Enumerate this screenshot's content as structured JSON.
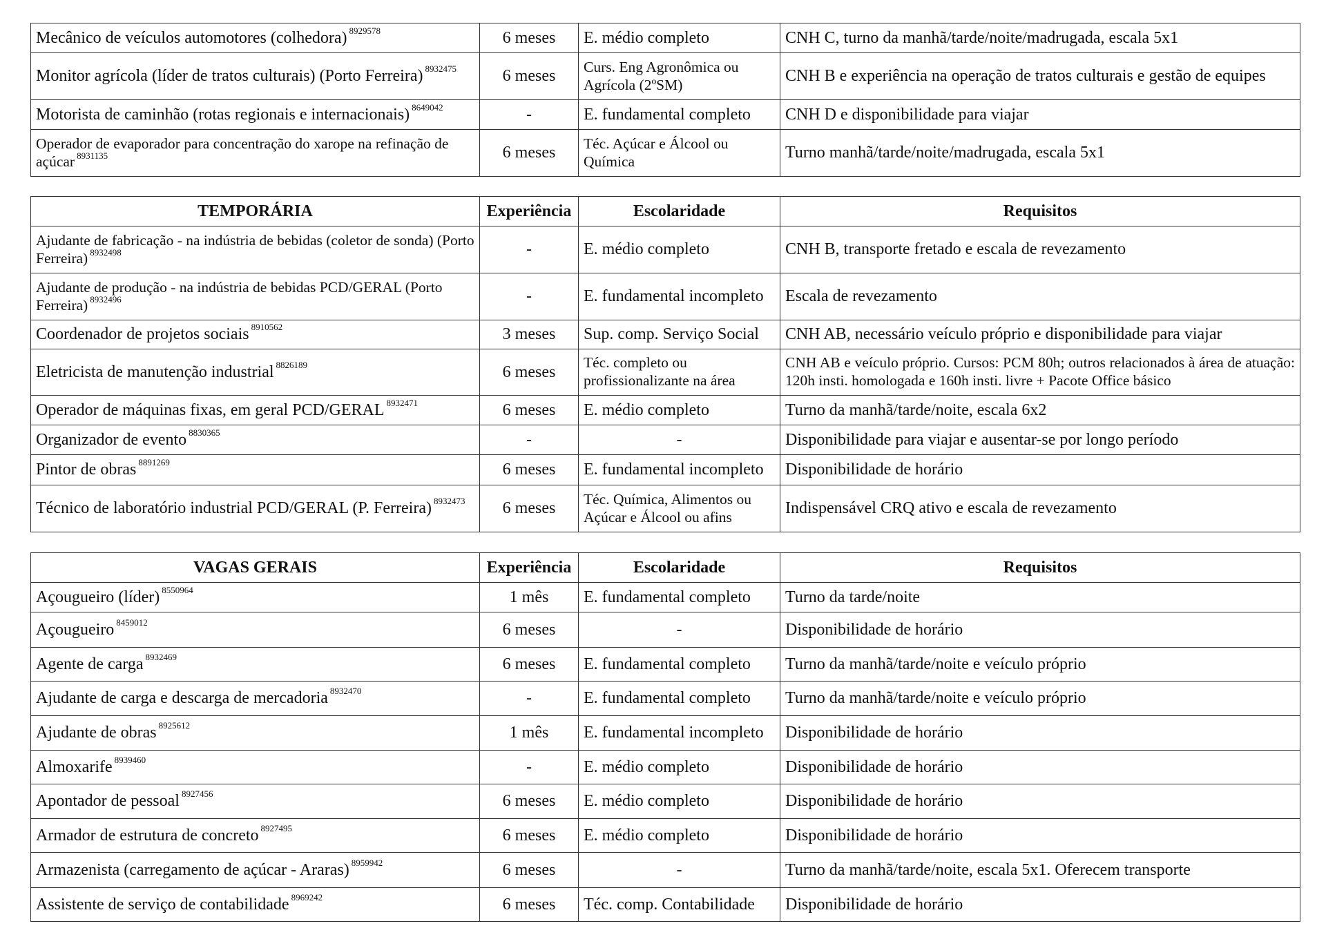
{
  "tables": [
    {
      "headers": null,
      "rows": [
        {
          "cargo": "Mecânico de veículos automotores (colhedora)",
          "codigo": "8929578",
          "experiencia": "6 meses",
          "escolaridade": "E. médio completo",
          "requisitos": "CNH C, turno da manhã/tarde/noite/madrugada, escala 5x1"
        },
        {
          "cargo": "Monitor agrícola (líder de tratos culturais) (Porto Ferreira)",
          "codigo": "8932475",
          "experiencia": "6 meses",
          "escolaridade": "Curs. Eng Agronômica ou Agrícola (2ºSM)",
          "requisitos": "CNH B e experiência na operação de tratos culturais e gestão de equipes"
        },
        {
          "cargo": "Motorista de caminhão (rotas regionais e internacionais)",
          "codigo": "8649042",
          "experiencia": "-",
          "escolaridade": "E. fundamental completo",
          "requisitos": "CNH D e disponibilidade para viajar"
        },
        {
          "cargo": "Operador de evaporador para concentração do xarope na refinação de açúcar",
          "codigo": "8931135",
          "experiencia": "6 meses",
          "escolaridade": "Téc. Açúcar e Álcool ou Química",
          "requisitos": "Turno manhã/tarde/noite/madrugada, escala 5x1"
        }
      ]
    },
    {
      "headers": {
        "cargo": "TEMPORÁRIA",
        "experiencia": "Experiência",
        "escolaridade": "Escolaridade",
        "requisitos": "Requisitos"
      },
      "rows": [
        {
          "cargo": "Ajudante de fabricação - na indústria de bebidas (coletor de sonda) (Porto Ferreira)",
          "codigo": "8932498",
          "experiencia": "-",
          "escolaridade": "E. médio completo",
          "requisitos": "CNH B, transporte fretado e escala de revezamento"
        },
        {
          "cargo": "Ajudante de produção - na indústria de bebidas PCD/GERAL (Porto Ferreira)",
          "codigo": "8932496",
          "experiencia": "-",
          "escolaridade": "E. fundamental incompleto",
          "requisitos": "Escala de revezamento"
        },
        {
          "cargo": "Coordenador de projetos sociais",
          "codigo": "8910562",
          "experiencia": "3 meses",
          "escolaridade": "Sup. comp. Serviço Social",
          "requisitos": "CNH AB, necessário veículo próprio e disponibilidade para viajar"
        },
        {
          "cargo": "Eletricista de manutenção industrial",
          "codigo": "8826189",
          "experiencia": "6 meses",
          "escolaridade": "Téc. completo ou profissionalizante na área",
          "requisitos": "CNH AB e veículo próprio. Cursos: PCM 80h; outros relacionados à área de atuação: 120h insti. homologada e 160h insti. livre + Pacote Office básico"
        },
        {
          "cargo": "Operador de máquinas fixas, em geral PCD/GERAL",
          "codigo": "8932471",
          "experiencia": "6 meses",
          "escolaridade": "E. médio completo",
          "requisitos": "Turno da manhã/tarde/noite, escala 6x2"
        },
        {
          "cargo": "Organizador de evento",
          "codigo": "8830365",
          "experiencia": "-",
          "escolaridade": "-",
          "requisitos": "Disponibilidade para viajar e ausentar-se por longo período"
        },
        {
          "cargo": "Pintor de obras",
          "codigo": "8891269",
          "experiencia": "6 meses",
          "escolaridade": "E. fundamental incompleto",
          "requisitos": "Disponibilidade de horário"
        },
        {
          "cargo": "Técnico de laboratório industrial PCD/GERAL (P. Ferreira)",
          "codigo": "8932473",
          "experiencia": "6 meses",
          "escolaridade": "Téc. Química, Alimentos ou Açúcar e Álcool ou afins",
          "requisitos": "Indispensável CRQ ativo e escala de revezamento"
        }
      ]
    },
    {
      "headers": {
        "cargo": "VAGAS GERAIS",
        "experiencia": "Experiência",
        "escolaridade": "Escolaridade",
        "requisitos": "Requisitos"
      },
      "rows": [
        {
          "cargo": "Açougueiro (líder)",
          "codigo": "8550964",
          "experiencia": "1 mês",
          "escolaridade": "E. fundamental completo",
          "requisitos": "Turno da tarde/noite"
        },
        {
          "cargo": "Açougueiro",
          "codigo": "8459012",
          "experiencia": "6 meses",
          "escolaridade": "-",
          "requisitos": "Disponibilidade de horário"
        },
        {
          "cargo": "Agente de carga",
          "codigo": "8932469",
          "experiencia": "6 meses",
          "escolaridade": "E. fundamental completo",
          "requisitos": "Turno da manhã/tarde/noite e veículo próprio"
        },
        {
          "cargo": "Ajudante de carga e descarga de mercadoria",
          "codigo": "8932470",
          "experiencia": "-",
          "escolaridade": "E. fundamental completo",
          "requisitos": "Turno da manhã/tarde/noite e veículo próprio"
        },
        {
          "cargo": "Ajudante de obras",
          "codigo": "8925612",
          "experiencia": "1 mês",
          "escolaridade": "E. fundamental incompleto",
          "requisitos": "Disponibilidade de horário"
        },
        {
          "cargo": "Almoxarife",
          "codigo": "8939460",
          "experiencia": "-",
          "escolaridade": "E. médio completo",
          "requisitos": "Disponibilidade de horário"
        },
        {
          "cargo": "Apontador de pessoal",
          "codigo": "8927456",
          "experiencia": "6 meses",
          "escolaridade": "E. médio completo",
          "requisitos": "Disponibilidade de horário"
        },
        {
          "cargo": "Armador de estrutura de concreto",
          "codigo": "8927495",
          "experiencia": "6 meses",
          "escolaridade": "E. médio completo",
          "requisitos": "Disponibilidade de horário"
        },
        {
          "cargo": "Armazenista (carregamento de açúcar - Araras)",
          "codigo": "8959942",
          "experiencia": "6 meses",
          "escolaridade": "-",
          "requisitos": "Turno da manhã/tarde/noite, escala 5x1. Oferecem transporte"
        },
        {
          "cargo": "Assistente de serviço de contabilidade",
          "codigo": "8969242",
          "experiencia": "6 meses",
          "escolaridade": "Téc. comp. Contabilidade",
          "requisitos": "Disponibilidade de horário"
        }
      ]
    }
  ]
}
